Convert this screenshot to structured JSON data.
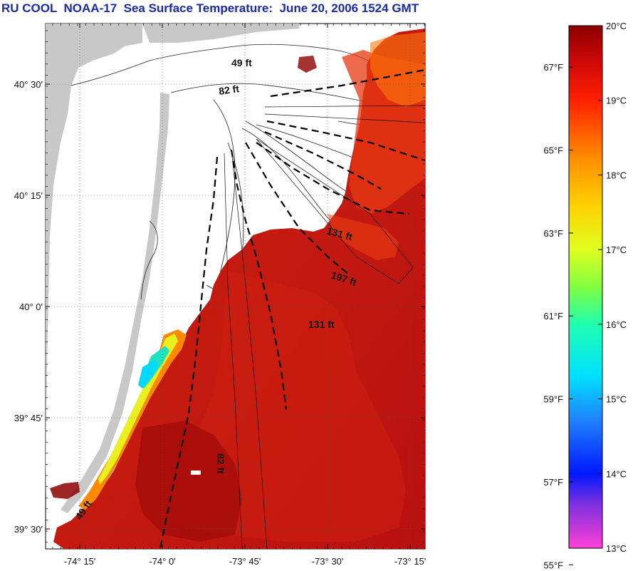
{
  "title": "RU COOL  NOAA-17  Sea Surface Temperature:  June 20, 2006 1524 GMT",
  "map": {
    "lat_ticks": [
      {
        "label": "40° 30'",
        "lat": 40.5
      },
      {
        "label": "40° 15'",
        "lat": 40.25
      },
      {
        "label": "40° 0'",
        "lat": 40.0
      },
      {
        "label": "39° 45'",
        "lat": 39.75
      },
      {
        "label": "39° 30'",
        "lat": 39.5
      }
    ],
    "lon_ticks": [
      {
        "label": "-74° 15'",
        "lon": -74.25
      },
      {
        "label": "-74° 0'",
        "lon": -74.0
      },
      {
        "label": "-73° 45'",
        "lon": -73.75
      },
      {
        "label": "-73° 30'",
        "lon": -73.5
      },
      {
        "label": "-73° 15'",
        "lon": -73.25
      }
    ],
    "contour_labels": [
      "49 ft",
      "82 ft",
      "131 ft",
      "197 ft",
      "131 ft",
      "82 ft",
      "49 ft"
    ],
    "colors": {
      "land": "#c8c8c8",
      "no_data": "#ffffff",
      "water_warm": "#b81010"
    }
  },
  "colorbar": {
    "fahrenheit": [
      {
        "label": "67°F",
        "value": 67
      },
      {
        "label": "65°F",
        "value": 65
      },
      {
        "label": "63°F",
        "value": 63
      },
      {
        "label": "61°F",
        "value": 61
      },
      {
        "label": "59°F",
        "value": 59
      },
      {
        "label": "57°F",
        "value": 57
      },
      {
        "label": "55°F",
        "value": 55
      }
    ],
    "celsius": [
      {
        "label": "20°C",
        "value": 20
      },
      {
        "label": "19°C",
        "value": 19
      },
      {
        "label": "18°C",
        "value": 18
      },
      {
        "label": "17°C",
        "value": 17
      },
      {
        "label": "16°C",
        "value": 16
      },
      {
        "label": "15°C",
        "value": 15
      },
      {
        "label": "14°C",
        "value": 14
      },
      {
        "label": "13°C",
        "value": 13
      }
    ],
    "celsius_range": [
      13,
      20
    ],
    "gradient": [
      {
        "c": 13.0,
        "color": "#ff40d8"
      },
      {
        "c": 13.6,
        "color": "#7a30e0"
      },
      {
        "c": 14.0,
        "color": "#0018ff"
      },
      {
        "c": 14.7,
        "color": "#2080ff"
      },
      {
        "c": 15.3,
        "color": "#00e0ff"
      },
      {
        "c": 16.0,
        "color": "#20ffb0"
      },
      {
        "c": 16.5,
        "color": "#80ff40"
      },
      {
        "c": 17.0,
        "color": "#e0ff20"
      },
      {
        "c": 17.6,
        "color": "#ffd000"
      },
      {
        "c": 18.2,
        "color": "#ff9000"
      },
      {
        "c": 19.0,
        "color": "#ff2000"
      },
      {
        "c": 19.5,
        "color": "#d00808"
      },
      {
        "c": 20.0,
        "color": "#8c0000"
      }
    ]
  }
}
